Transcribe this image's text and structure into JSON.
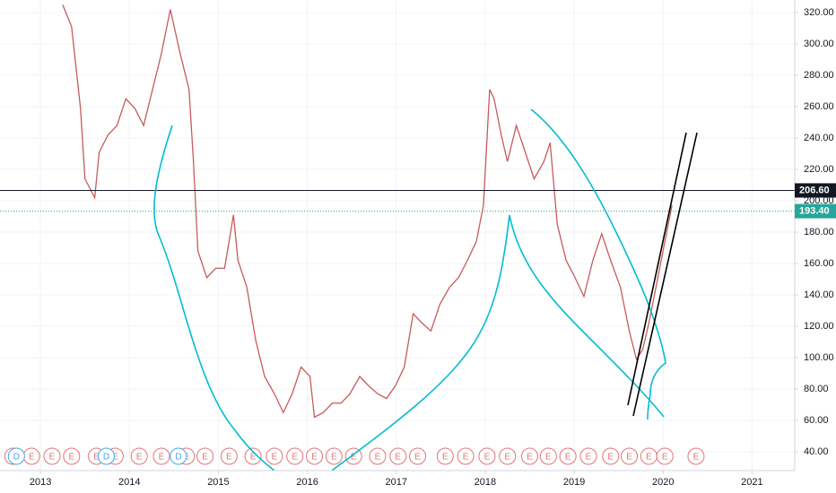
{
  "chart_data": {
    "type": "line",
    "color": "#c85a5a",
    "x": [
      2013.25,
      2013.35,
      2013.45,
      2013.5,
      2013.61,
      2013.66,
      2013.76,
      2013.86,
      2013.96,
      2014.06,
      2014.16,
      2014.26,
      2014.36,
      2014.46,
      2014.57,
      2014.67,
      2014.72,
      2014.77,
      2014.87,
      2014.97,
      2015.07,
      2015.17,
      2015.22,
      2015.32,
      2015.42,
      2015.52,
      2015.63,
      2015.73,
      2015.83,
      2015.93,
      2016.03,
      2016.08,
      2016.18,
      2016.28,
      2016.38,
      2016.48,
      2016.59,
      2016.69,
      2016.79,
      2016.89,
      2016.99,
      2017.09,
      2017.19,
      2017.29,
      2017.39,
      2017.49,
      2017.6,
      2017.7,
      2017.8,
      2017.9,
      2017.98,
      2018.05,
      2018.1,
      2018.18,
      2018.25,
      2018.35,
      2018.45,
      2018.55,
      2018.66,
      2018.73,
      2018.81,
      2018.91,
      2019.01,
      2019.11,
      2019.21,
      2019.31,
      2019.41,
      2019.52,
      2019.62,
      2019.7,
      2019.77,
      2019.84,
      2019.92,
      2020.02,
      2020.1
    ],
    "values": [
      325,
      311,
      259,
      214,
      202,
      231,
      242,
      248,
      265,
      259,
      248,
      271,
      294,
      322,
      294,
      271,
      225,
      168,
      151,
      157,
      157,
      191,
      162,
      145,
      111,
      88,
      77,
      65,
      77,
      94,
      88,
      62,
      65,
      71,
      71,
      77,
      88,
      82,
      77,
      74,
      82,
      94,
      128,
      122,
      117,
      134,
      145,
      151,
      162,
      174,
      197,
      271,
      265,
      242,
      225,
      248,
      231,
      214,
      225,
      237,
      185,
      162,
      151,
      139,
      162,
      179,
      162,
      145,
      117,
      99,
      105,
      122,
      145,
      174,
      197
    ],
    "xlim": [
      2012.545,
      2021.48
    ],
    "xticks": [
      2013,
      2014,
      2015,
      2016,
      2017,
      2018,
      2019,
      2020,
      2021
    ],
    "ylim": [
      28,
      328
    ],
    "yticks": [
      {
        "value": 40,
        "label": "40.00"
      },
      {
        "value": 60,
        "label": "60.00"
      },
      {
        "value": 80,
        "label": "80.00"
      },
      {
        "value": 100,
        "label": "100.00"
      },
      {
        "value": 120,
        "label": "120.00"
      },
      {
        "value": 140,
        "label": "140.00"
      },
      {
        "value": 160,
        "label": "160.00"
      },
      {
        "value": 180,
        "label": "180.00"
      },
      {
        "value": 200,
        "label": "200.00"
      },
      {
        "value": 220,
        "label": "220.00"
      },
      {
        "value": 240,
        "label": "240.00"
      },
      {
        "value": 260,
        "label": "260.00"
      },
      {
        "value": 280,
        "label": "280.00"
      },
      {
        "value": 300,
        "label": "300.00"
      },
      {
        "value": 320,
        "label": "320.00"
      }
    ],
    "grid": true,
    "price_lines": [
      {
        "value": 206.6,
        "label": "206.60",
        "color": "#131722"
      },
      {
        "value": 193.4,
        "label": "193.40",
        "color": "#26a69a"
      }
    ],
    "earnings": {
      "label": "E",
      "color": "#e57373",
      "x": [
        2012.69,
        2012.9,
        2013.13,
        2013.35,
        2013.63,
        2013.84,
        2014.11,
        2014.36,
        2014.64,
        2014.85,
        2015.12,
        2015.39,
        2015.63,
        2015.86,
        2016.08,
        2016.3,
        2016.52,
        2016.79,
        2017.02,
        2017.24,
        2017.55,
        2017.78,
        2018.02,
        2018.25,
        2018.5,
        2018.71,
        2018.93,
        2019.16,
        2019.41,
        2019.62,
        2019.84,
        2020.02,
        2020.37
      ]
    },
    "dividends": {
      "label": "D",
      "color": "#42a5f5",
      "x": [
        2012.73,
        2013.74,
        2014.55
      ]
    }
  }
}
